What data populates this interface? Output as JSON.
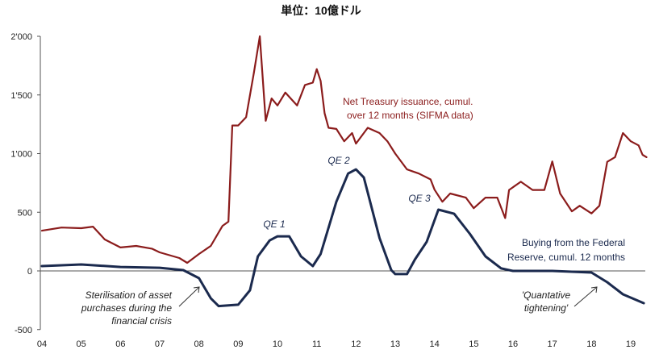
{
  "chart_data": {
    "type": "line",
    "title": "単位：10億ドル",
    "xlabel": "",
    "ylabel": "",
    "xlim": [
      2004.0,
      2019.4
    ],
    "ylim": [
      -500,
      2000
    ],
    "x_ticks": [
      2004,
      2005,
      2006,
      2007,
      2008,
      2009,
      2010,
      2011,
      2012,
      2013,
      2014,
      2015,
      2016,
      2017,
      2018,
      2019
    ],
    "x_tick_labels": [
      "04",
      "05",
      "06",
      "07",
      "08",
      "09",
      "10",
      "11",
      "12",
      "13",
      "14",
      "15",
      "16",
      "17",
      "18",
      "19"
    ],
    "y_ticks": [
      -500,
      0,
      500,
      1000,
      1500,
      2000
    ],
    "y_tick_labels": [
      "-500",
      "0",
      "500",
      "1'000",
      "1'500",
      "2'000"
    ],
    "grid": false,
    "series": [
      {
        "name": "Net Treasury issuance, cumul. over 12 months (SIFMA data)",
        "label_lines": [
          "Net Treasury issuance, cumul.",
          "over 12 months (SIFMA data)"
        ],
        "color": "#8b1c1c",
        "x": [
          2004.0,
          2004.5,
          2005.0,
          2005.3,
          2005.6,
          2006.0,
          2006.4,
          2006.8,
          2007.0,
          2007.5,
          2007.7,
          2008.0,
          2008.3,
          2008.6,
          2008.75,
          2008.85,
          2009.0,
          2009.2,
          2009.4,
          2009.55,
          2009.7,
          2009.85,
          2010.0,
          2010.2,
          2010.5,
          2010.7,
          2010.9,
          2011.0,
          2011.1,
          2011.2,
          2011.3,
          2011.5,
          2011.7,
          2011.9,
          2012.0,
          2012.3,
          2012.6,
          2012.8,
          2013.0,
          2013.3,
          2013.6,
          2013.9,
          2014.0,
          2014.2,
          2014.4,
          2014.8,
          2015.0,
          2015.3,
          2015.6,
          2015.8,
          2015.9,
          2016.2,
          2016.5,
          2016.8,
          2017.0,
          2017.2,
          2017.5,
          2017.7,
          2018.0,
          2018.2,
          2018.4,
          2018.6,
          2018.8,
          2019.0,
          2019.2,
          2019.3,
          2019.4
        ],
        "y": [
          343,
          370,
          364,
          377,
          268,
          200,
          213,
          190,
          158,
          110,
          69,
          144,
          213,
          384,
          420,
          1240,
          1240,
          1310,
          1690,
          2000,
          1280,
          1470,
          1410,
          1520,
          1410,
          1585,
          1605,
          1720,
          1620,
          1345,
          1220,
          1210,
          1105,
          1175,
          1085,
          1220,
          1175,
          1105,
          1000,
          865,
          830,
          780,
          693,
          590,
          660,
          625,
          535,
          625,
          625,
          450,
          690,
          760,
          690,
          690,
          933,
          660,
          508,
          555,
          490,
          555,
          930,
          970,
          1175,
          1105,
          1070,
          990,
          970
        ]
      },
      {
        "name": "Buying from the Federal Reserve, cumul. 12 months",
        "label_lines": [
          "Buying from the Federal",
          "Reserve, cumul. 12 months"
        ],
        "color": "#1b2a4e",
        "x": [
          2004.0,
          2005.0,
          2006.0,
          2007.0,
          2007.6,
          2008.0,
          2008.3,
          2008.5,
          2009.0,
          2009.3,
          2009.5,
          2009.8,
          2010.0,
          2010.3,
          2010.6,
          2010.9,
          2011.1,
          2011.5,
          2011.8,
          2012.0,
          2012.2,
          2012.6,
          2012.9,
          2013.0,
          2013.3,
          2013.5,
          2013.8,
          2014.1,
          2014.5,
          2014.9,
          2015.3,
          2015.7,
          2016.0,
          2017.0,
          2018.0,
          2018.4,
          2018.8,
          2019.33
        ],
        "y": [
          41,
          55,
          34,
          27,
          7,
          -62,
          -233,
          -300,
          -288,
          -165,
          124,
          260,
          295,
          295,
          124,
          41,
          144,
          590,
          830,
          865,
          796,
          281,
          7,
          -27,
          -27,
          96,
          247,
          522,
          487,
          316,
          124,
          21,
          0,
          0,
          -14,
          -96,
          -199,
          -275
        ]
      }
    ],
    "annotations": {
      "qe1": "QE 1",
      "qe2": "QE 2",
      "qe3": "QE 3",
      "sterilisation": [
        "Sterilisation of asset",
        "purchases during the",
        "financial crisis"
      ],
      "tightening": [
        "'Quantative",
        "tightening'"
      ]
    }
  }
}
